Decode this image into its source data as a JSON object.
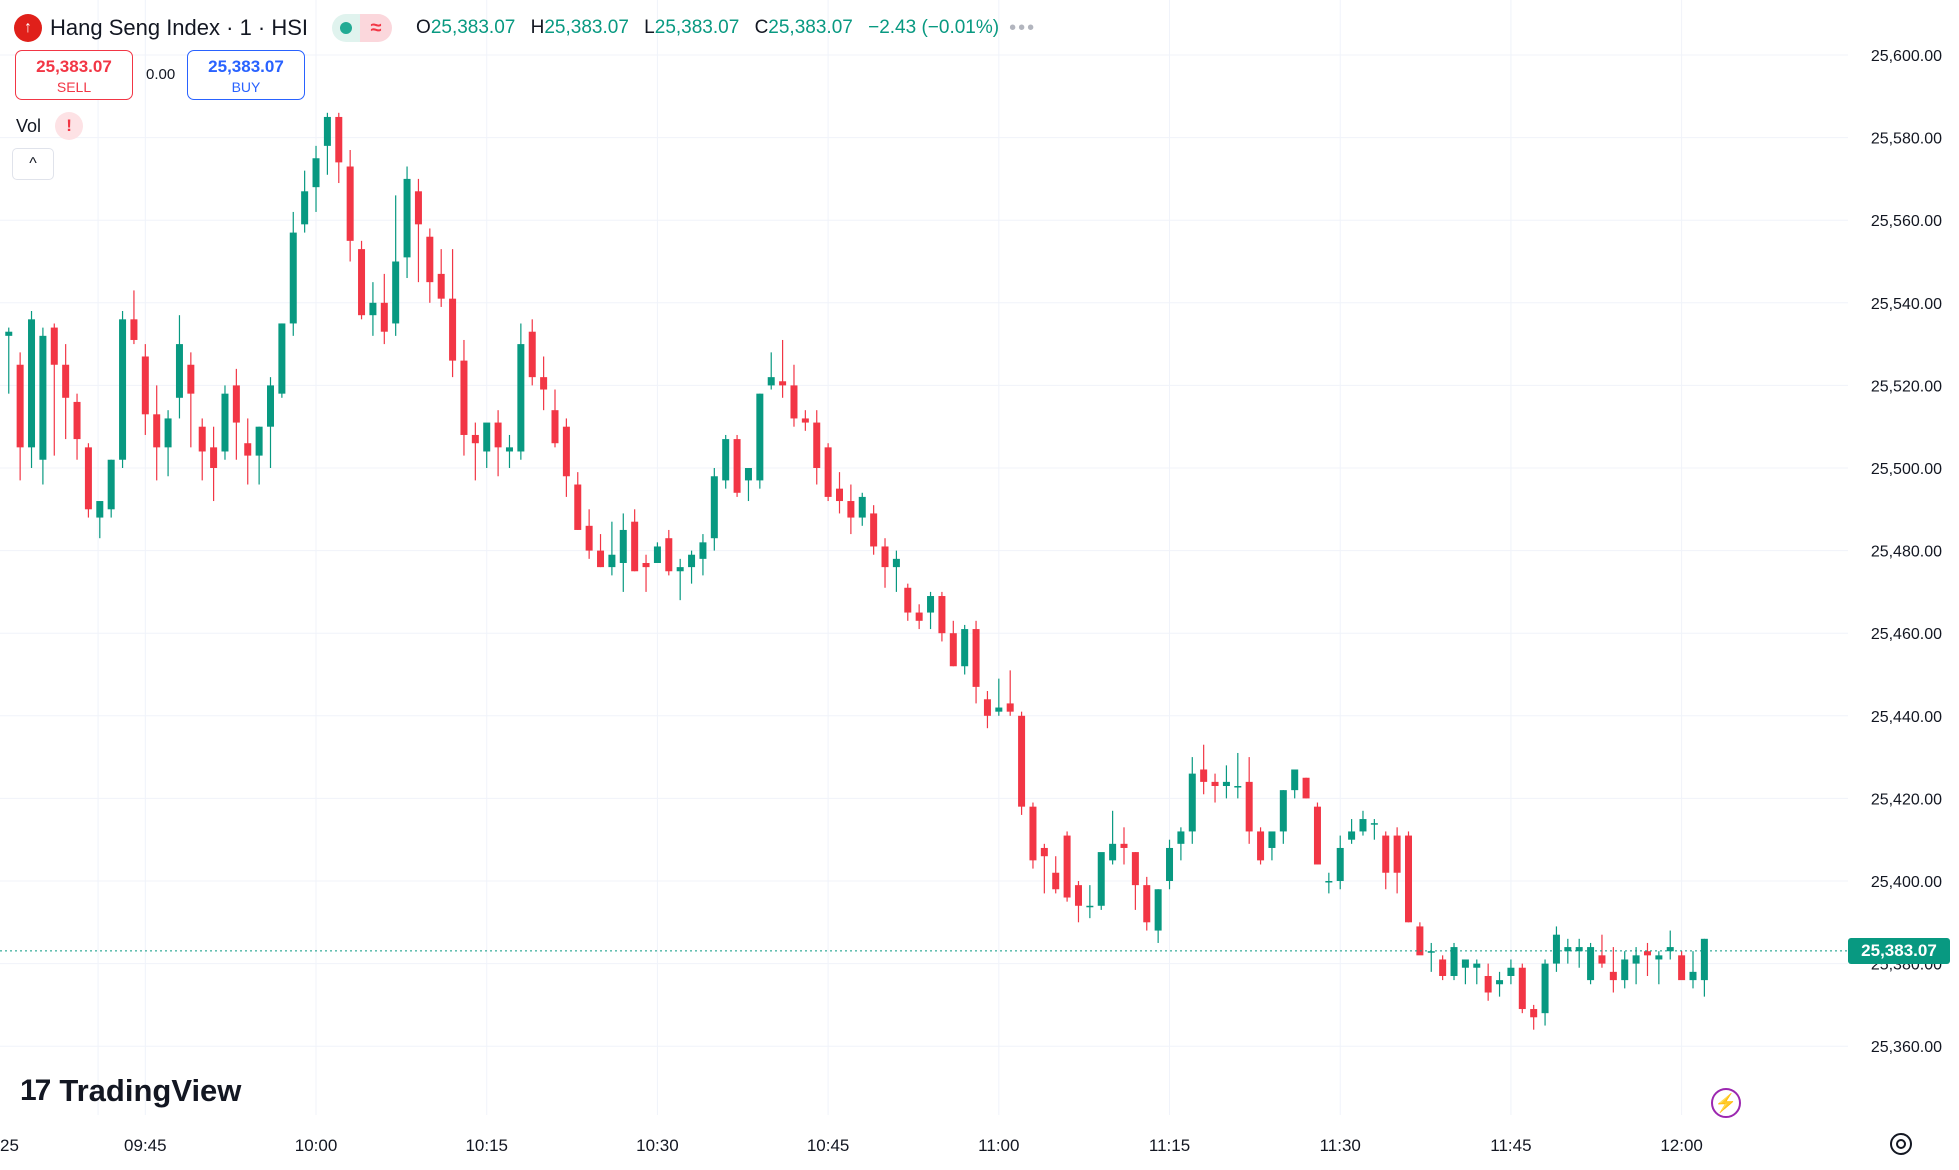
{
  "header": {
    "title": "Hang Seng Index · 1 · HSI",
    "logo_glyph": "↑",
    "status_glyph": "≈",
    "ohlc": {
      "o_label": "O",
      "o": "25,383.07",
      "h_label": "H",
      "h": "25,383.07",
      "l_label": "L",
      "l": "25,383.07",
      "c_label": "C",
      "c": "25,383.07",
      "change": "−2.43 (−0.01%)"
    },
    "more": "•••"
  },
  "trade": {
    "sell_price": "25,383.07",
    "sell_label": "SELL",
    "spread": "0.00",
    "buy_price": "25,383.07",
    "buy_label": "BUY"
  },
  "volume": {
    "label": "Vol",
    "warn": "!",
    "collapse": "^"
  },
  "branding": {
    "name": "TradingView",
    "mark": "17"
  },
  "current_price": "25,383.07",
  "colors": {
    "up": "#089981",
    "down": "#f23645",
    "grid": "#f0f3fa",
    "text": "#131722"
  },
  "chart_data": {
    "type": "candlestick",
    "title": "Hang Seng Index · 1 · HSI",
    "xlabel": "",
    "ylabel": "",
    "ylim": [
      25346,
      25614
    ],
    "y_ticks": [
      "25,600.00",
      "25,580.00",
      "25,560.00",
      "25,540.00",
      "25,520.00",
      "25,500.00",
      "25,480.00",
      "25,460.00",
      "25,440.00",
      "25,420.00",
      "25,400.00",
      "25,380.00",
      "25,360.00"
    ],
    "y_tick_values": [
      25600,
      25580,
      25560,
      25540,
      25520,
      25500,
      25480,
      25460,
      25440,
      25420,
      25400,
      25380,
      25360
    ],
    "x_ticks": [
      "25",
      "09:45",
      "10:00",
      "10:15",
      "10:30",
      "10:45",
      "11:00",
      "11:15",
      "11:30",
      "11:45",
      "12:00"
    ],
    "x_tick_minutes": [
      9.85,
      14,
      29,
      44,
      59,
      74,
      89,
      104,
      119,
      134,
      149
    ],
    "grid": true,
    "last_price": 25383.07,
    "candles_ohlc": [
      [
        25532,
        25534,
        25518,
        25533
      ],
      [
        25525,
        25528,
        25497,
        25505
      ],
      [
        25505,
        25538,
        25500,
        25536
      ],
      [
        25502,
        25534,
        25496,
        25532
      ],
      [
        25534,
        25535,
        25503,
        25525
      ],
      [
        25525,
        25530,
        25507,
        25517
      ],
      [
        25516,
        25518,
        25502,
        25507
      ],
      [
        25505,
        25506,
        25488,
        25490
      ],
      [
        25488,
        25490,
        25483,
        25492
      ],
      [
        25490,
        25502,
        25488,
        25502
      ],
      [
        25502,
        25538,
        25500,
        25536
      ],
      [
        25536,
        25543,
        25530,
        25531
      ],
      [
        25527,
        25530,
        25508,
        25513
      ],
      [
        25513,
        25520,
        25497,
        25505
      ],
      [
        25505,
        25514,
        25498,
        25512
      ],
      [
        25517,
        25537,
        25512,
        25530
      ],
      [
        25525,
        25528,
        25505,
        25518
      ],
      [
        25510,
        25512,
        25497,
        25504
      ],
      [
        25505,
        25510,
        25492,
        25500
      ],
      [
        25504,
        25520,
        25502,
        25518
      ],
      [
        25520,
        25524,
        25502,
        25511
      ],
      [
        25506,
        25512,
        25496,
        25503
      ],
      [
        25503,
        25510,
        25496,
        25510
      ],
      [
        25510,
        25522,
        25500,
        25520
      ],
      [
        25518,
        25535,
        25517,
        25535
      ],
      [
        25535,
        25562,
        25532,
        25557
      ],
      [
        25559,
        25572,
        25557,
        25567
      ],
      [
        25568,
        25578,
        25562,
        25575
      ],
      [
        25578,
        25586,
        25571,
        25585
      ],
      [
        25585,
        25586,
        25569,
        25574
      ],
      [
        25573,
        25577,
        25550,
        25555
      ],
      [
        25553,
        25555,
        25536,
        25537
      ],
      [
        25537,
        25545,
        25532,
        25540
      ],
      [
        25540,
        25547,
        25530,
        25533
      ],
      [
        25535,
        25566,
        25532,
        25550
      ],
      [
        25551,
        25573,
        25546,
        25570
      ],
      [
        25567,
        25570,
        25545,
        25559
      ],
      [
        25556,
        25558,
        25540,
        25545
      ],
      [
        25547,
        25553,
        25539,
        25541
      ],
      [
        25541,
        25553,
        25522,
        25526
      ],
      [
        25526,
        25531,
        25503,
        25508
      ],
      [
        25508,
        25511,
        25497,
        25506
      ],
      [
        25504,
        25510,
        25500,
        25511
      ],
      [
        25511,
        25514,
        25498,
        25505
      ],
      [
        25504,
        25508,
        25500,
        25505
      ],
      [
        25504,
        25535,
        25502,
        25530
      ],
      [
        25533,
        25536,
        25520,
        25522
      ],
      [
        25522,
        25527,
        25514,
        25519
      ],
      [
        25514,
        25519,
        25505,
        25506
      ],
      [
        25510,
        25512,
        25493,
        25498
      ],
      [
        25496,
        25499,
        25485,
        25485
      ],
      [
        25486,
        25490,
        25478,
        25480
      ],
      [
        25480,
        25484,
        25476,
        25476
      ],
      [
        25476,
        25487,
        25474,
        25479
      ],
      [
        25477,
        25489,
        25470,
        25485
      ],
      [
        25487,
        25490,
        25475,
        25475
      ],
      [
        25477,
        25479,
        25470,
        25476
      ],
      [
        25477,
        25482,
        25478,
        25481
      ],
      [
        25483,
        25485,
        25474,
        25475
      ],
      [
        25475,
        25478,
        25468,
        25476
      ],
      [
        25476,
        25480,
        25472,
        25479
      ],
      [
        25478,
        25484,
        25474,
        25482
      ],
      [
        25483,
        25500,
        25480,
        25498
      ],
      [
        25497,
        25508,
        25495,
        25507
      ],
      [
        25507,
        25508,
        25493,
        25494
      ],
      [
        25497,
        25500,
        25492,
        25500
      ],
      [
        25497,
        25518,
        25495,
        25518
      ],
      [
        25520,
        25528,
        25519,
        25522
      ],
      [
        25521,
        25531,
        25517,
        25520
      ],
      [
        25520,
        25525,
        25510,
        25512
      ],
      [
        25512,
        25514,
        25509,
        25511
      ],
      [
        25511,
        25514,
        25496,
        25500
      ],
      [
        25505,
        25506,
        25492,
        25493
      ],
      [
        25495,
        25499,
        25489,
        25492
      ],
      [
        25492,
        25496,
        25484,
        25488
      ],
      [
        25488,
        25494,
        25486,
        25493
      ],
      [
        25489,
        25491,
        25479,
        25481
      ],
      [
        25481,
        25483,
        25471,
        25476
      ],
      [
        25476,
        25480,
        25470,
        25478
      ],
      [
        25471,
        25472,
        25463,
        25465
      ],
      [
        25465,
        25467,
        25461,
        25463
      ],
      [
        25465,
        25470,
        25461,
        25469
      ],
      [
        25469,
        25470,
        25458,
        25460
      ],
      [
        25460,
        25463,
        25452,
        25452
      ],
      [
        25452,
        25462,
        25450,
        25461
      ],
      [
        25461,
        25463,
        25443,
        25447
      ],
      [
        25444,
        25446,
        25437,
        25440
      ],
      [
        25441,
        25449,
        25440,
        25442
      ],
      [
        25443,
        25451,
        25440,
        25441
      ],
      [
        25440,
        25441,
        25416,
        25418
      ],
      [
        25418,
        25419,
        25403,
        25405
      ],
      [
        25408,
        25409,
        25397,
        25406
      ],
      [
        25402,
        25406,
        25397,
        25398
      ],
      [
        25411,
        25412,
        25395,
        25396
      ],
      [
        25399,
        25400,
        25390,
        25394
      ],
      [
        25394,
        25399,
        25391,
        25394
      ],
      [
        25394,
        25406,
        25393,
        25407
      ],
      [
        25405,
        25417,
        25404,
        25409
      ],
      [
        25409,
        25413,
        25404,
        25408
      ],
      [
        25407,
        25407,
        25393,
        25399
      ],
      [
        25399,
        25401,
        25388,
        25390
      ],
      [
        25388,
        25398,
        25385,
        25398
      ],
      [
        25400,
        25410,
        25398,
        25408
      ],
      [
        25409,
        25413,
        25405,
        25412
      ],
      [
        25412,
        25430,
        25409,
        25426
      ],
      [
        25427,
        25433,
        25421,
        25424
      ],
      [
        25424,
        25426,
        25419,
        25423
      ],
      [
        25423,
        25428,
        25420,
        25424
      ],
      [
        25423,
        25431,
        25420,
        25423
      ],
      [
        25424,
        25430,
        25409,
        25412
      ],
      [
        25412,
        25413,
        25404,
        25405
      ],
      [
        25408,
        25411,
        25405,
        25412
      ],
      [
        25412,
        25422,
        25409,
        25422
      ],
      [
        25422,
        25427,
        25420,
        25427
      ],
      [
        25425,
        25425,
        25420,
        25420
      ],
      [
        25418,
        25419,
        25404,
        25404
      ],
      [
        25400,
        25402,
        25397,
        25400
      ],
      [
        25400,
        25411,
        25398,
        25408
      ],
      [
        25410,
        25415,
        25409,
        25412
      ],
      [
        25412,
        25417,
        25411,
        25415
      ],
      [
        25414,
        25415,
        25410,
        25414
      ],
      [
        25411,
        25412,
        25398,
        25402
      ],
      [
        25411,
        25413,
        25397,
        25402
      ],
      [
        25411,
        25412,
        25390,
        25390
      ],
      [
        25389,
        25390,
        25383,
        25382
      ],
      [
        25383,
        25385,
        25378,
        25383
      ],
      [
        25381,
        25382,
        25376,
        25377
      ],
      [
        25377,
        25385,
        25376,
        25384
      ],
      [
        25379,
        25380,
        25375,
        25381
      ],
      [
        25379,
        25381,
        25375,
        25380
      ],
      [
        25377,
        25380,
        25371,
        25373
      ],
      [
        25375,
        25378,
        25372,
        25376
      ],
      [
        25377,
        25381,
        25375,
        25379
      ],
      [
        25379,
        25380,
        25368,
        25369
      ],
      [
        25369,
        25370,
        25364,
        25367
      ],
      [
        25368,
        25381,
        25365,
        25380
      ],
      [
        25380,
        25389,
        25378,
        25387
      ],
      [
        25383,
        25386,
        25380,
        25384
      ],
      [
        25383,
        25386,
        25379,
        25384
      ],
      [
        25376,
        25385,
        25375,
        25384
      ],
      [
        25382,
        25387,
        25379,
        25380
      ],
      [
        25378,
        25384,
        25373,
        25376
      ],
      [
        25376,
        25383,
        25374,
        25381
      ],
      [
        25380,
        25384,
        25375,
        25382
      ],
      [
        25383,
        25385,
        25377,
        25382
      ],
      [
        25381,
        25383,
        25375,
        25382
      ],
      [
        25383,
        25388,
        25381,
        25384
      ],
      [
        25382,
        25383,
        25377,
        25376
      ],
      [
        25376,
        25383,
        25374,
        25378
      ],
      [
        25376,
        25386,
        25372,
        25386
      ]
    ]
  }
}
